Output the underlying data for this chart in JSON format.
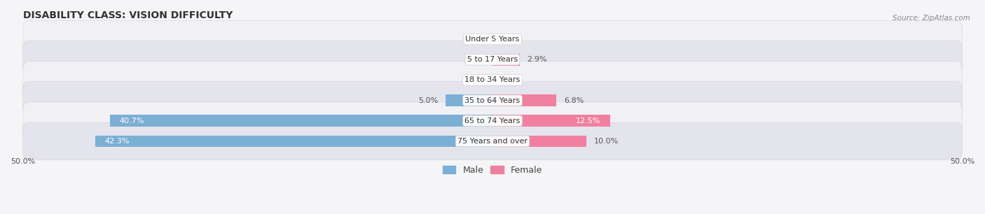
{
  "title": "DISABILITY CLASS: VISION DIFFICULTY",
  "source": "Source: ZipAtlas.com",
  "categories": [
    "Under 5 Years",
    "5 to 17 Years",
    "18 to 34 Years",
    "35 to 64 Years",
    "65 to 74 Years",
    "75 Years and over"
  ],
  "male_values": [
    0.0,
    0.0,
    0.0,
    5.0,
    40.7,
    42.3
  ],
  "female_values": [
    0.0,
    2.9,
    0.0,
    6.8,
    12.5,
    10.0
  ],
  "male_color": "#7bafd4",
  "female_color": "#f080a0",
  "row_color_light": "#f0f0f5",
  "row_color_dark": "#e4e4ec",
  "fig_bg": "#f5f5f8",
  "xlim": 50.0,
  "bar_height": 0.58,
  "title_fontsize": 10,
  "label_fontsize": 8,
  "tick_fontsize": 8,
  "legend_fontsize": 9
}
